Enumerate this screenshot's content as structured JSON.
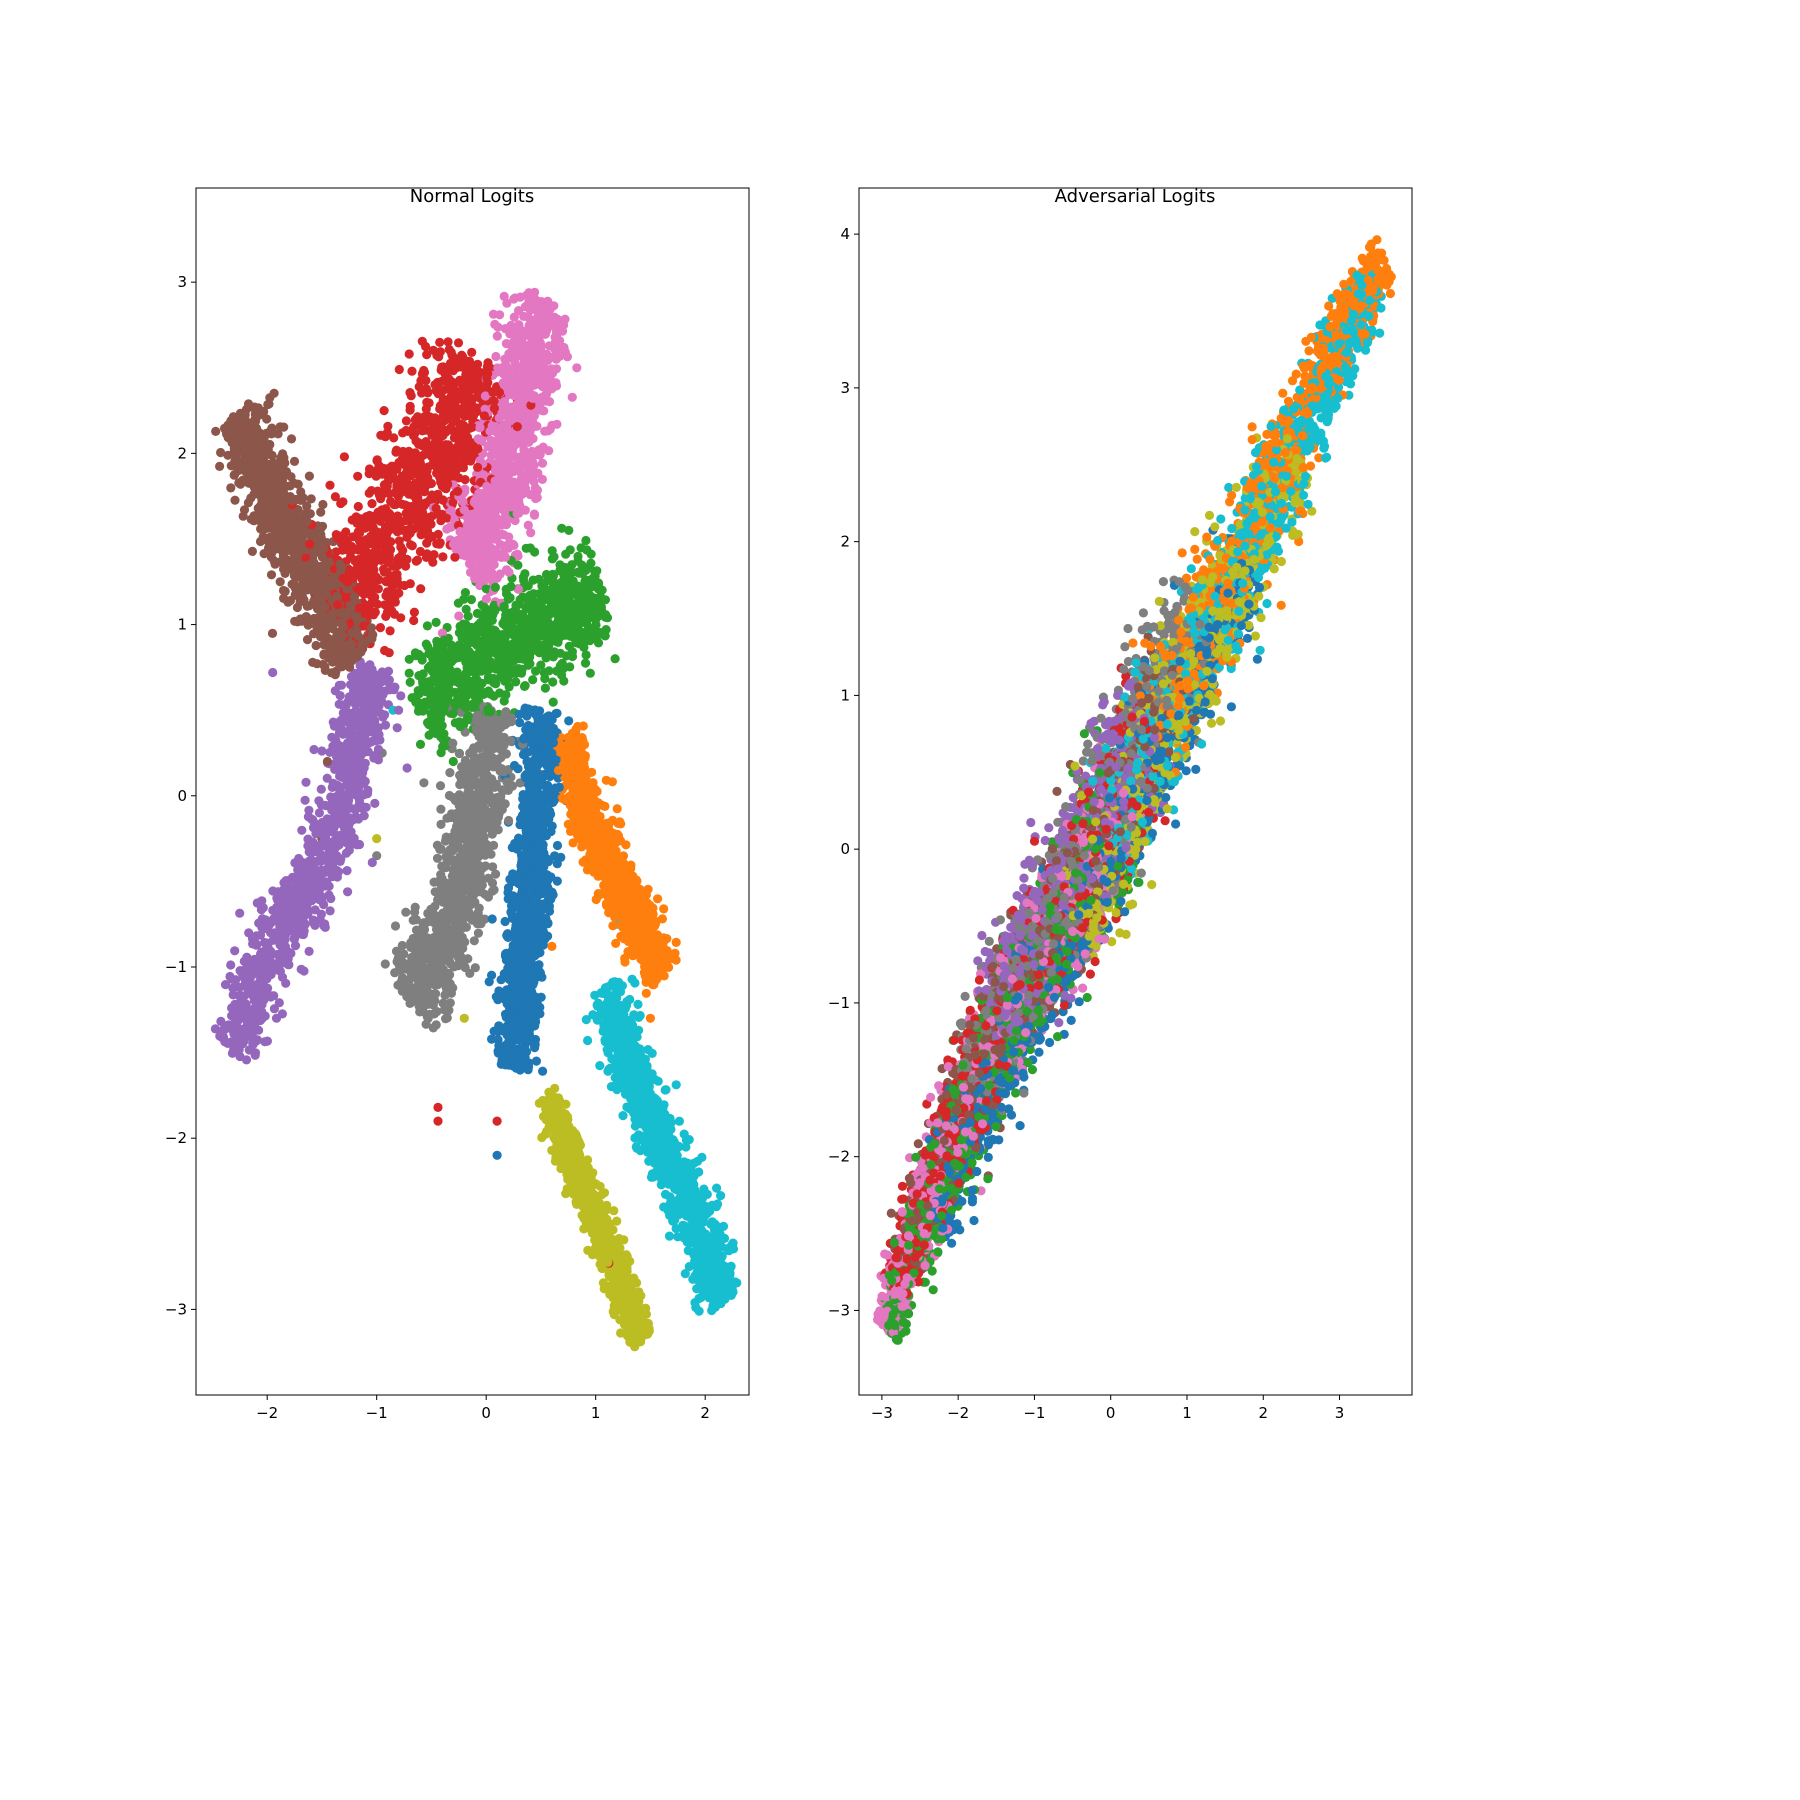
{
  "chart_data": [
    {
      "type": "scatter",
      "title": "Normal Logits",
      "xlabel": "",
      "ylabel": "",
      "xlim": [
        -2.65,
        2.4
      ],
      "ylim": [
        -3.5,
        3.55
      ],
      "xticks": [
        -2,
        -1,
        0,
        1,
        2
      ],
      "yticks": [
        -3,
        -2,
        -1,
        0,
        1,
        2,
        3
      ],
      "xtick_labels": [
        "−2",
        "−1",
        "0",
        "1",
        "2"
      ],
      "ytick_labels": [
        "−3",
        "−2",
        "−1",
        "0",
        "1",
        "2",
        "3"
      ],
      "grid": false,
      "legend": "none",
      "point_count_per_class": 1000,
      "series": [
        {
          "color": "#1f77b4",
          "cluster_shape": "vertical band",
          "path": [
            [
              0.5,
              0.5
            ],
            [
              0.45,
              -0.3
            ],
            [
              0.35,
              -0.9
            ],
            [
              0.25,
              -1.6
            ]
          ],
          "spread": 0.09,
          "outliers": [
            [
              0.1,
              -2.1
            ],
            [
              0.27,
              -1.5
            ]
          ]
        },
        {
          "color": "#ff7f0e",
          "cluster_shape": "diagonal band",
          "path": [
            [
              0.72,
              0.35
            ],
            [
              1.0,
              -0.25
            ],
            [
              1.3,
              -0.6
            ],
            [
              1.6,
              -1.05
            ]
          ],
          "spread": 0.08,
          "outliers": [
            [
              0.6,
              -0.88
            ],
            [
              1.5,
              -1.3
            ]
          ]
        },
        {
          "color": "#2ca02c",
          "cluster_shape": "wedge",
          "path": [
            [
              -0.6,
              0.45
            ],
            [
              -0.2,
              0.75
            ],
            [
              0.3,
              0.95
            ],
            [
              0.8,
              1.1
            ],
            [
              1.05,
              1.2
            ]
          ],
          "spread": 0.16,
          "outliers": [
            [
              0.25,
              1.65
            ],
            [
              -0.3,
              0.2
            ],
            [
              -0.6,
              0.3
            ]
          ]
        },
        {
          "color": "#d62728",
          "cluster_shape": "broad diagonal cloud",
          "path": [
            [
              -1.4,
              1.05
            ],
            [
              -1.0,
              1.45
            ],
            [
              -0.6,
              1.8
            ],
            [
              -0.25,
              2.2
            ],
            [
              -0.1,
              2.55
            ]
          ],
          "spread": 0.2,
          "outliers": [
            [
              -0.44,
              -1.82
            ],
            [
              -0.44,
              -1.9
            ],
            [
              1.12,
              -2.73
            ],
            [
              0.1,
              -1.9
            ]
          ]
        },
        {
          "color": "#9467bd",
          "cluster_shape": "diagonal arm",
          "path": [
            [
              -2.3,
              -1.5
            ],
            [
              -2.05,
              -0.95
            ],
            [
              -1.75,
              -0.65
            ],
            [
              -1.4,
              -0.3
            ],
            [
              -1.2,
              0.3
            ],
            [
              -1.0,
              0.75
            ]
          ],
          "spread": 0.11,
          "outliers": [
            [
              -1.95,
              0.72
            ],
            [
              -0.8,
              0.5
            ]
          ]
        },
        {
          "color": "#8c564b",
          "cluster_shape": "arm",
          "path": [
            [
              -2.25,
              2.25
            ],
            [
              -2.05,
              1.85
            ],
            [
              -1.75,
              1.5
            ],
            [
              -1.45,
              1.15
            ],
            [
              -1.2,
              0.8
            ]
          ],
          "spread": 0.12,
          "outliers": [
            [
              -1.45,
              0.2
            ],
            [
              -1.5,
              -0.25
            ]
          ]
        },
        {
          "color": "#e377c2",
          "cluster_shape": "cloud",
          "path": [
            [
              0.6,
              2.85
            ],
            [
              0.35,
              2.5
            ],
            [
              0.25,
              2.05
            ],
            [
              0.1,
              1.65
            ],
            [
              -0.2,
              1.35
            ]
          ],
          "spread": 0.15,
          "outliers": [
            [
              -0.4,
              0.95
            ],
            [
              -0.25,
              1.05
            ]
          ]
        },
        {
          "color": "#7f7f7f",
          "cluster_shape": "vertical band",
          "path": [
            [
              0.1,
              0.5
            ],
            [
              -0.1,
              -0.1
            ],
            [
              -0.25,
              -0.55
            ],
            [
              -0.45,
              -0.95
            ],
            [
              -0.7,
              -1.2
            ]
          ],
          "spread": 0.13,
          "outliers": [
            [
              -1.0,
              -0.35
            ],
            [
              -0.95,
              0.25
            ]
          ]
        },
        {
          "color": "#bcbd22",
          "cluster_shape": "thin diagonal band",
          "path": [
            [
              0.55,
              -1.75
            ],
            [
              0.8,
              -2.15
            ],
            [
              1.05,
              -2.55
            ],
            [
              1.25,
              -2.85
            ],
            [
              1.42,
              -3.18
            ]
          ],
          "spread": 0.055,
          "outliers": [
            [
              -1.0,
              -0.25
            ],
            [
              -0.2,
              -1.3
            ]
          ]
        },
        {
          "color": "#17becf",
          "cluster_shape": "diagonal band",
          "path": [
            [
              1.1,
              -1.1
            ],
            [
              1.35,
              -1.65
            ],
            [
              1.65,
              -2.1
            ],
            [
              1.95,
              -2.5
            ],
            [
              2.15,
              -2.95
            ]
          ],
          "spread": 0.09,
          "outliers": [
            [
              0.9,
              -0.2
            ],
            [
              1.2,
              -0.75
            ],
            [
              -0.85,
              0.5
            ]
          ]
        }
      ]
    },
    {
      "type": "scatter",
      "title": "Adversarial Logits",
      "xlabel": "",
      "ylabel": "",
      "xlim": [
        -3.3,
        3.95
      ],
      "ylim": [
        -3.55,
        4.3
      ],
      "xticks": [
        -3,
        -2,
        -1,
        0,
        1,
        2,
        3
      ],
      "yticks": [
        -3,
        -2,
        -1,
        0,
        1,
        2,
        3,
        4
      ],
      "xtick_labels": [
        "−3",
        "−2",
        "−1",
        "0",
        "1",
        "2",
        "3"
      ],
      "ytick_labels": [
        "−3",
        "−2",
        "−1",
        "0",
        "1",
        "2",
        "3",
        "4"
      ],
      "grid": false,
      "legend": "none",
      "point_count_per_class": 1000,
      "band_path": [
        [
          -2.9,
          -3.15
        ],
        [
          -2.6,
          -2.6
        ],
        [
          -1.5,
          -1.25
        ],
        [
          -0.3,
          -0.2
        ],
        [
          0.5,
          0.75
        ],
        [
          1.7,
          1.9
        ],
        [
          2.8,
          3.1
        ],
        [
          3.6,
          3.85
        ]
      ],
      "series": [
        {
          "color": "#1f77b4",
          "t_range": [
            0.1,
            0.72
          ],
          "offset": -0.12
        },
        {
          "color": "#ff7f0e",
          "t_range": [
            0.55,
            1.0
          ],
          "offset": 0.02
        },
        {
          "color": "#2ca02c",
          "t_range": [
            0.0,
            0.5
          ],
          "offset": -0.02
        },
        {
          "color": "#d62728",
          "t_range": [
            0.03,
            0.55
          ],
          "offset": 0.06
        },
        {
          "color": "#9467bd",
          "t_range": [
            0.25,
            0.55
          ],
          "offset": 0.12
        },
        {
          "color": "#8c564b",
          "t_range": [
            0.05,
            0.6
          ],
          "offset": 0.07
        },
        {
          "color": "#e377c2",
          "t_range": [
            0.0,
            0.5
          ],
          "offset": 0.04
        },
        {
          "color": "#7f7f7f",
          "t_range": [
            0.2,
            0.65
          ],
          "offset": 0.1
        },
        {
          "color": "#bcbd22",
          "t_range": [
            0.38,
            0.82
          ],
          "offset": -0.08
        },
        {
          "color": "#17becf",
          "t_range": [
            0.45,
            0.98
          ],
          "offset": -0.04
        }
      ]
    }
  ]
}
